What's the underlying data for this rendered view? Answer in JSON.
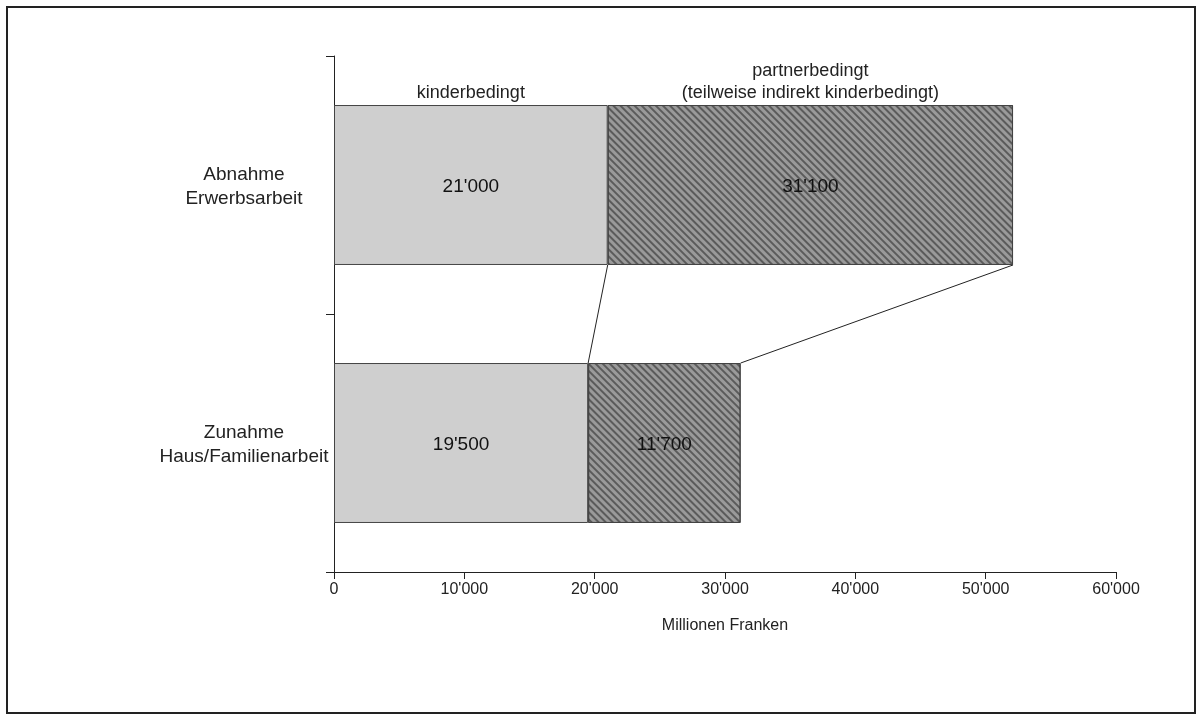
{
  "chart_data": {
    "type": "bar",
    "orientation": "horizontal",
    "stacked": true,
    "xlabel": "Millionen Franken",
    "categories": [
      "Abnahme\nErwerbsarbeit",
      "Zunahme\nHaus/Familienarbeit"
    ],
    "series": [
      {
        "name": "kinderbedingt",
        "color": "#cfcfcf",
        "values": [
          21000,
          19500
        ],
        "value_labels": [
          "21'000",
          "19'500"
        ]
      },
      {
        "name": "partnerbedingt\n(teilweise indirekt kinderbedingt)",
        "color": "#9a9a9a",
        "values": [
          31100,
          11700
        ],
        "value_labels": [
          "31'100",
          "11'700"
        ]
      }
    ],
    "xlim": [
      0,
      60000
    ],
    "xticks": [
      0,
      {
        "value": 10000,
        "label": "10'000"
      },
      {
        "value": 20000,
        "label": "20'000"
      },
      {
        "value": 30000,
        "label": "30'000"
      },
      {
        "value": 40000,
        "label": "40'000"
      },
      {
        "value": 50000,
        "label": "50'000"
      },
      {
        "value": 60000,
        "label": "60'000"
      }
    ],
    "grid": false,
    "legend": false
  }
}
